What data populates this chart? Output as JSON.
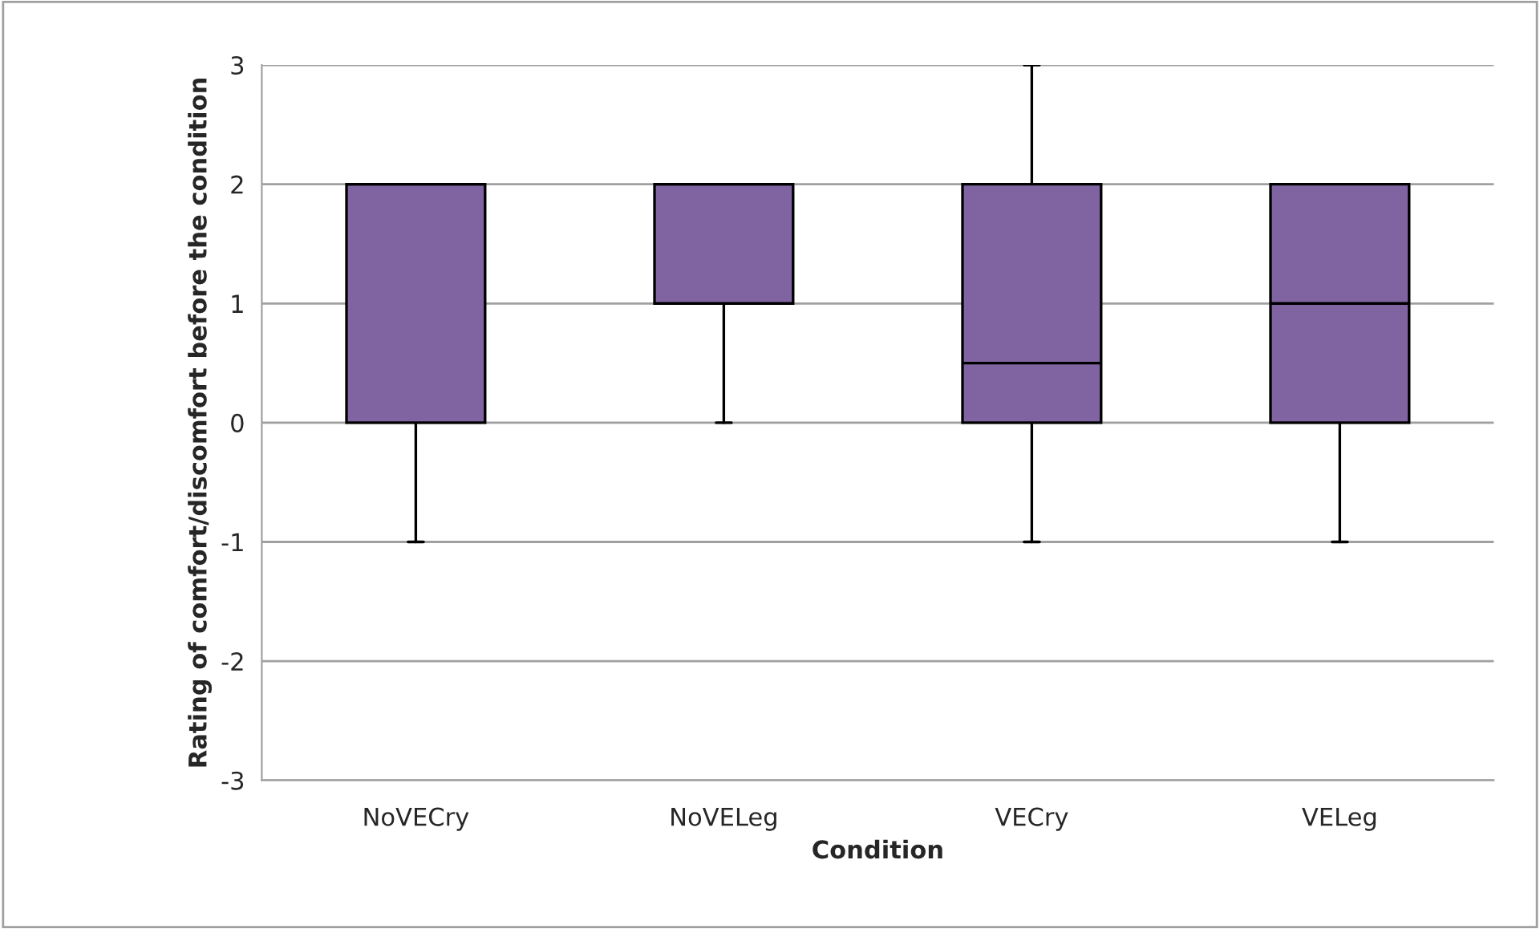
{
  "chart_data": {
    "type": "box",
    "xlabel": "Condition",
    "ylabel": "Rating of comfort/discomfort before the condition",
    "categories": [
      "NoVECry",
      "NoVELeg",
      "VECry",
      "VELeg"
    ],
    "color": "#8064a2",
    "boxes": [
      {
        "low": -1,
        "q1": 0,
        "median": 2,
        "q3": 2,
        "high": 2
      },
      {
        "low": 0,
        "q1": 1,
        "median": 2,
        "q3": 2,
        "high": 2
      },
      {
        "low": -1,
        "q1": 0,
        "median": 0.5,
        "q3": 2,
        "high": 3
      },
      {
        "low": -1,
        "q1": 0,
        "median": 1,
        "q3": 2,
        "high": 2
      }
    ],
    "ylim": [
      -3,
      3
    ],
    "yticks": [
      -3,
      -2,
      -1,
      0,
      1,
      2,
      3
    ],
    "grid": "y"
  }
}
